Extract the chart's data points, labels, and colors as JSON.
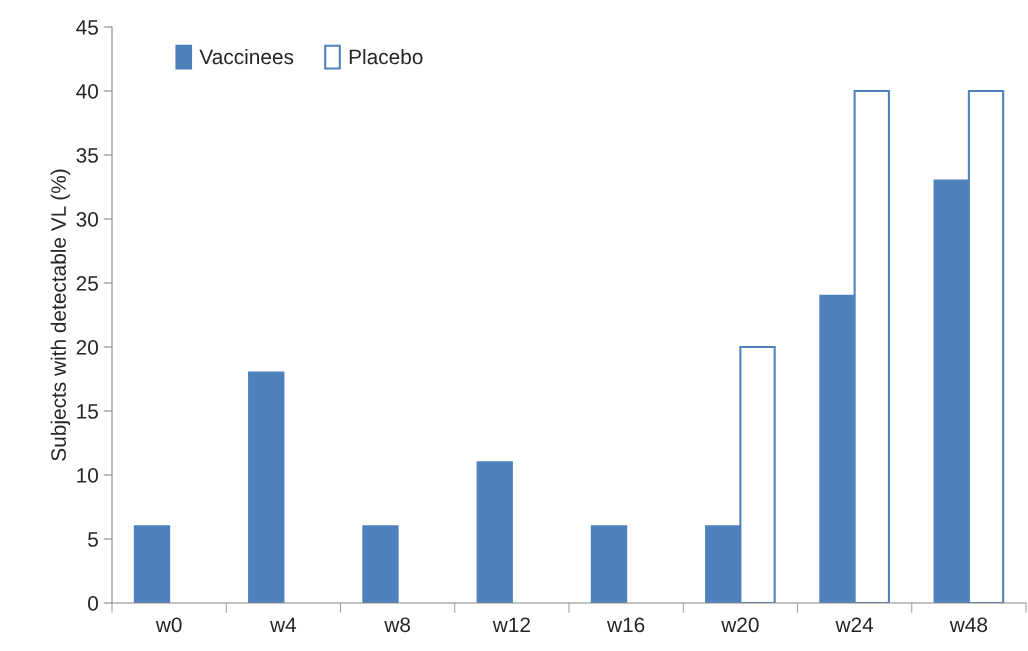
{
  "chart_data": {
    "type": "bar",
    "ylabel": "Subjects with detectable VL (%)",
    "categories": [
      "w0",
      "w4",
      "w8",
      "w12",
      "w16",
      "w20",
      "w24",
      "w48"
    ],
    "series": [
      {
        "name": "Vaccinees",
        "color": "#4f81bd",
        "values": [
          6,
          18,
          6,
          11,
          6,
          6,
          24,
          33
        ]
      },
      {
        "name": "Placebo",
        "color": "#ffffff",
        "values": [
          null,
          null,
          null,
          null,
          null,
          20,
          40,
          40
        ]
      }
    ],
    "ylim": [
      0,
      45
    ],
    "yticks": [
      0,
      5,
      10,
      15,
      20,
      25,
      30,
      35,
      40,
      45
    ],
    "grid": false,
    "legend": "top left"
  }
}
